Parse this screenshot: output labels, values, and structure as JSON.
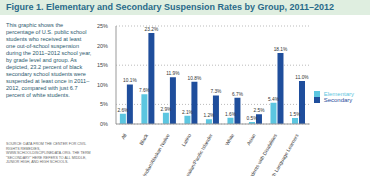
{
  "chart_data": {
    "type": "bar",
    "title": "Figure 1. Elementary and Secondary Suspension Rates by Group, 2011–2012",
    "annotations": [
      "This graphic shows the percentage of U.S. public school students who received at least one out-of-school suspension during the 2011–2012 school year, by grade level and group. As depicted, 23.2 percent of black secondary school students were suspended at least once in 2011–2012, compared with just 6.7 percent of white students.",
      "SOURCE: DATA FROM THE CENTER FOR CIVIL RIGHTS REMEDIES, WWW.SCHOOLDISCIPLINEDATA.ORG. THE TERM \"SECONDARY\" HERE REFERS TO ALL MIDDLE, JUNIOR HIGH, AND HIGH SCHOOLS."
    ],
    "categories": [
      "All",
      "Black",
      "American Indian/Alaskan Native",
      "Latino",
      "Hawaiian/Pacific Islander",
      "White",
      "Asian",
      "Students with Disabilities",
      "English Language Learners"
    ],
    "series": [
      {
        "name": "Elementary",
        "color": "#5cc6e0",
        "values": [
          2.6,
          7.6,
          2.9,
          2.1,
          1.2,
          1.6,
          0.5,
          5.4,
          1.5
        ],
        "value_labels": [
          "2.6%",
          "7.6%",
          "2.9%",
          "2.1%",
          "1.2%",
          "1.6%",
          "0.5%",
          "5.4%",
          "1.5%"
        ]
      },
      {
        "name": "Secondary",
        "color": "#1f4e9c",
        "values": [
          10.1,
          23.2,
          11.9,
          10.8,
          7.3,
          6.7,
          2.5,
          18.1,
          11.0
        ],
        "value_labels": [
          "10.1%",
          "23.2%",
          "11.9%",
          "10.8%",
          "7.3%",
          "6.7%",
          "2.5%",
          "18.1%",
          "11.0%"
        ]
      }
    ],
    "ylim": [
      0,
      25
    ],
    "yticks": [
      {
        "value": 0,
        "label": "0%"
      },
      {
        "value": 5,
        "label": "5%"
      },
      {
        "value": 10,
        "label": "10%"
      },
      {
        "value": 15,
        "label": "15%"
      },
      {
        "value": 20,
        "label": "20%"
      },
      {
        "value": 25,
        "label": "25%"
      }
    ],
    "grid": true,
    "legend": "right",
    "data_labels": true
  }
}
